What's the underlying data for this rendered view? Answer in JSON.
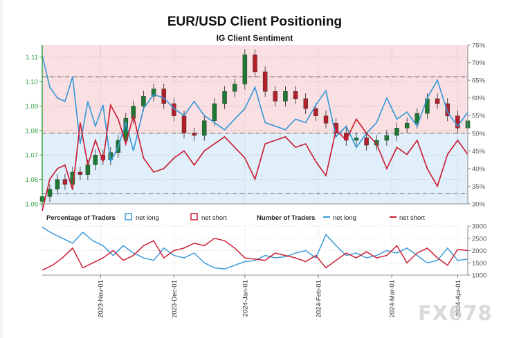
{
  "chart_data": {
    "type": "line",
    "title": "EUR/USD Client Positioning",
    "subtitle": "IG Client Sentiment",
    "top_panel": {
      "left_axis": {
        "ylim": [
          1.05,
          1.115
        ],
        "ticks": [
          "1.11",
          "1.10",
          "1.09",
          "1.08",
          "1.07",
          "1.06",
          "1.05"
        ],
        "tick_values": [
          1.11,
          1.1,
          1.09,
          1.08,
          1.07,
          1.06,
          1.05
        ]
      },
      "right_axis": {
        "ylim": [
          30,
          75
        ],
        "ticks": [
          "75%",
          "70%",
          "65%",
          "60%",
          "55%",
          "50%",
          "45%",
          "40%",
          "35%",
          "30%"
        ],
        "tick_values": [
          75,
          70,
          65,
          60,
          55,
          50,
          45,
          40,
          35,
          30
        ]
      },
      "price_series": {
        "name": "EUR/USD",
        "x": [
          0,
          3,
          6,
          9,
          12,
          15,
          18,
          21,
          24,
          27,
          30,
          33,
          36,
          40,
          44,
          48,
          52,
          56,
          60,
          64,
          68,
          72,
          76,
          80,
          84,
          88,
          92,
          96,
          100,
          104,
          108,
          112,
          116,
          120,
          124,
          128,
          132,
          136,
          140,
          144,
          148,
          152,
          156,
          160,
          164,
          168
        ],
        "close": [
          1.053,
          1.056,
          1.06,
          1.058,
          1.063,
          1.062,
          1.066,
          1.07,
          1.068,
          1.071,
          1.076,
          1.085,
          1.09,
          1.094,
          1.097,
          1.091,
          1.086,
          1.079,
          1.078,
          1.084,
          1.091,
          1.096,
          1.099,
          1.111,
          1.104,
          1.096,
          1.092,
          1.096,
          1.093,
          1.089,
          1.086,
          1.083,
          1.079,
          1.076,
          1.077,
          1.074,
          1.076,
          1.078,
          1.081,
          1.083,
          1.087,
          1.093,
          1.091,
          1.086,
          1.081,
          1.084
        ]
      },
      "sentiment_series": [
        {
          "name": "net long %",
          "color": "#3a9ad9",
          "x": [
            0,
            3,
            6,
            9,
            12,
            15,
            18,
            21,
            24,
            27,
            30,
            33,
            36,
            40,
            44,
            48,
            52,
            56,
            60,
            64,
            68,
            72,
            76,
            80,
            84,
            88,
            92,
            96,
            100,
            104,
            108,
            112,
            116,
            120,
            124,
            128,
            132,
            136,
            140,
            144,
            148,
            152,
            156,
            160,
            164,
            168
          ],
          "values": [
            72,
            63,
            60,
            59,
            66,
            47,
            59,
            52,
            58,
            42,
            46,
            53,
            45,
            57,
            61,
            60,
            57,
            55,
            59,
            55,
            53,
            51,
            54,
            57,
            63,
            53,
            52,
            51,
            54,
            53,
            58,
            62,
            49,
            52,
            46,
            50,
            53,
            60,
            54,
            56,
            52,
            60,
            65,
            56,
            52,
            56
          ]
        },
        {
          "name": "net short %",
          "color": "#cc1f35",
          "x": [
            0,
            3,
            6,
            9,
            12,
            15,
            18,
            21,
            24,
            27,
            30,
            33,
            36,
            40,
            44,
            48,
            52,
            56,
            60,
            64,
            68,
            72,
            76,
            80,
            84,
            88,
            92,
            96,
            100,
            104,
            108,
            112,
            116,
            120,
            124,
            128,
            132,
            136,
            140,
            144,
            148,
            152,
            156,
            160,
            164,
            168
          ],
          "values": [
            28,
            37,
            40,
            41,
            34,
            53,
            41,
            48,
            42,
            58,
            54,
            47,
            55,
            43,
            39,
            40,
            43,
            45,
            41,
            45,
            47,
            49,
            46,
            43,
            37,
            47,
            48,
            49,
            46,
            47,
            42,
            38,
            51,
            48,
            54,
            50,
            47,
            40,
            46,
            44,
            48,
            40,
            35,
            44,
            48,
            44
          ]
        }
      ],
      "reference_lines": [
        66,
        50,
        33
      ]
    },
    "bottom_panel": {
      "legend_percentage_title": "Percentage of Traders",
      "legend_number_title": "Number of Traders",
      "legend_items": [
        "net long",
        "net short",
        "net long",
        "net short"
      ],
      "right_axis": {
        "ylim": [
          1000,
          3000
        ],
        "ticks": [
          "3000",
          "2500",
          "2000",
          "1500",
          "1000"
        ],
        "tick_values": [
          3000,
          2500,
          2000,
          1500,
          1000
        ]
      },
      "series": [
        {
          "name": "net long",
          "color": "#3a9ad9",
          "x": [
            0,
            4,
            8,
            12,
            16,
            20,
            24,
            28,
            32,
            36,
            40,
            44,
            48,
            52,
            56,
            60,
            64,
            68,
            72,
            76,
            80,
            84,
            88,
            92,
            96,
            100,
            104,
            108,
            112,
            116,
            120,
            124,
            128,
            132,
            136,
            140,
            144,
            148,
            152,
            156,
            160,
            164,
            168
          ],
          "values": [
            2950,
            2700,
            2500,
            2300,
            2750,
            2400,
            2200,
            1800,
            2200,
            1900,
            1700,
            1600,
            2100,
            1800,
            1700,
            1900,
            1500,
            1300,
            1250,
            1400,
            1550,
            1600,
            1800,
            1700,
            1750,
            1900,
            2000,
            1700,
            2650,
            2200,
            1800,
            1900,
            1700,
            1800,
            2000,
            1900,
            2100,
            1800,
            1500,
            1600,
            2100,
            1600,
            1650
          ]
        },
        {
          "name": "net short",
          "color": "#cc1f35",
          "x": [
            0,
            4,
            8,
            12,
            16,
            20,
            24,
            28,
            32,
            36,
            40,
            44,
            48,
            52,
            56,
            60,
            64,
            68,
            72,
            76,
            80,
            84,
            88,
            92,
            96,
            100,
            104,
            108,
            112,
            116,
            120,
            124,
            128,
            132,
            136,
            140,
            144,
            148,
            152,
            156,
            160,
            164,
            168
          ],
          "values": [
            1200,
            1400,
            1700,
            2100,
            1300,
            1500,
            1700,
            2000,
            1600,
            1800,
            2200,
            2400,
            1700,
            2000,
            2100,
            2300,
            2200,
            2500,
            2400,
            2100,
            1700,
            1650,
            1600,
            1900,
            1800,
            1700,
            1550,
            1800,
            1300,
            1600,
            1900,
            1700,
            1950,
            1700,
            1800,
            2200,
            1500,
            1900,
            2100,
            1700,
            1400,
            2050,
            2000
          ]
        }
      ],
      "x_ticks": [
        "2023-Nov-01",
        "2023-Dec-01",
        "2024-Jan-01",
        "2024-Feb-01",
        "2024-Mar-01",
        "2024-Apr-01"
      ],
      "x_tick_positions": [
        23,
        52,
        80,
        109,
        138,
        164
      ]
    },
    "x_range": [
      0,
      168
    ],
    "watermark": "FX678"
  }
}
